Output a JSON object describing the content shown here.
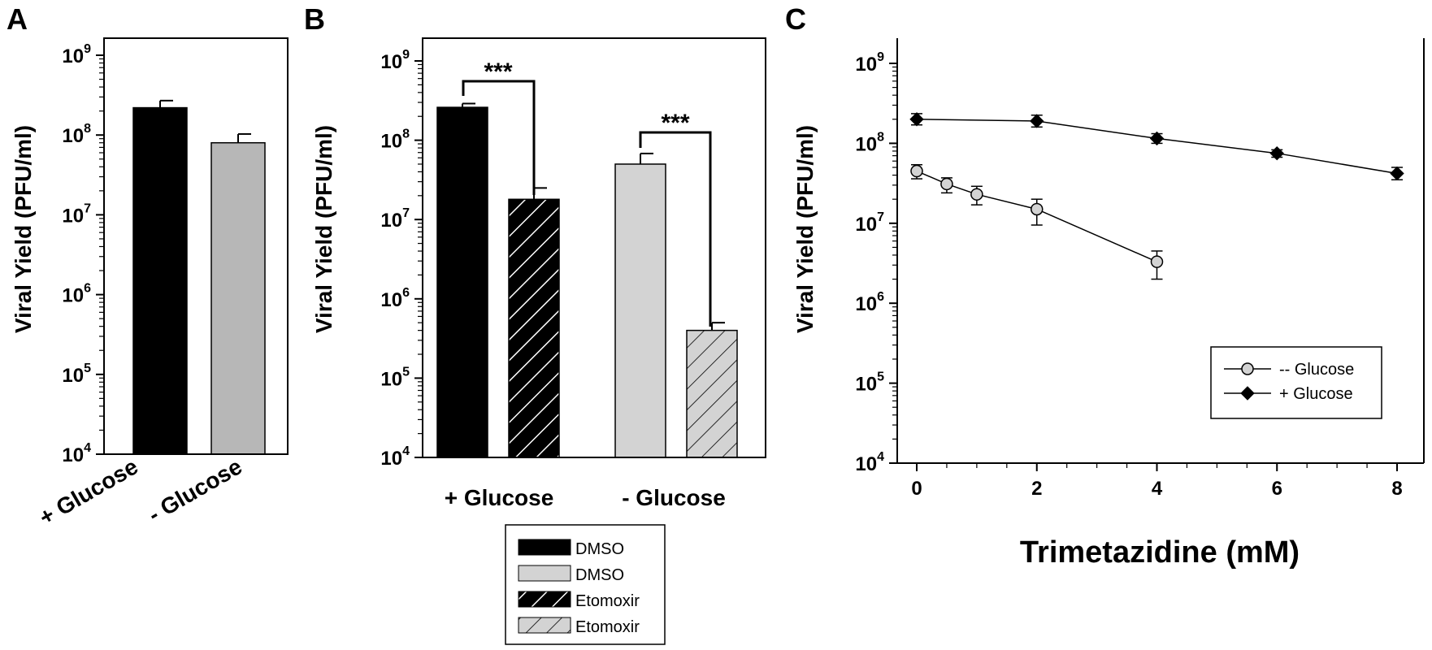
{
  "colors": {
    "black": "#000000",
    "light_gray": "#d3d3d3",
    "mid_gray": "#b7b7b7",
    "line": "#000000"
  },
  "chart_data": [
    {
      "type": "bar",
      "panel": "A",
      "ylabel": "Viral Yield (PFU/ml)",
      "yscale": "log",
      "ylim": [
        10000,
        1000000000
      ],
      "yticks": [
        {
          "base": "10",
          "exp": "4"
        },
        {
          "base": "10",
          "exp": "5"
        },
        {
          "base": "10",
          "exp": "6"
        },
        {
          "base": "10",
          "exp": "7"
        },
        {
          "base": "10",
          "exp": "8"
        },
        {
          "base": "10",
          "exp": "9"
        }
      ],
      "categories": [
        "+ Glucose",
        "- Glucose"
      ],
      "values": [
        220000000,
        80000000
      ],
      "errors_upper": [
        270000000,
        103000000
      ],
      "bar_colors": [
        "#000000",
        "#b7b7b7"
      ]
    },
    {
      "type": "bar",
      "panel": "B",
      "ylabel": "Viral Yield (PFU/ml)",
      "yscale": "log",
      "ylim": [
        10000,
        1000000000
      ],
      "yticks": [
        {
          "base": "10",
          "exp": "4"
        },
        {
          "base": "10",
          "exp": "5"
        },
        {
          "base": "10",
          "exp": "6"
        },
        {
          "base": "10",
          "exp": "7"
        },
        {
          "base": "10",
          "exp": "8"
        },
        {
          "base": "10",
          "exp": "9"
        }
      ],
      "categories": [
        "+ Glucose",
        "- Glucose"
      ],
      "bars": [
        {
          "group": "+ Glucose",
          "treatment": "DMSO",
          "value": 260000000,
          "error_upper": 290000000,
          "fill": "#000000",
          "hatch": false
        },
        {
          "group": "+ Glucose",
          "treatment": "Etomoxir",
          "value": 18000000,
          "error_upper": 25000000,
          "fill": "#000000",
          "hatch": true
        },
        {
          "group": "- Glucose",
          "treatment": "DMSO",
          "value": 50000000,
          "error_upper": 68000000,
          "fill": "#d3d3d3",
          "hatch": false
        },
        {
          "group": "- Glucose",
          "treatment": "Etomoxir",
          "value": 400000,
          "error_upper": 500000,
          "fill": "#d3d3d3",
          "hatch": true
        }
      ],
      "significance": [
        "***",
        "***"
      ],
      "legend": [
        {
          "label": "DMSO",
          "fill": "#000000",
          "hatch": false
        },
        {
          "label": "DMSO",
          "fill": "#d3d3d3",
          "hatch": false
        },
        {
          "label": "Etomoxir",
          "fill": "#000000",
          "hatch": true
        },
        {
          "label": "Etomoxir",
          "fill": "#d3d3d3",
          "hatch": true
        }
      ],
      "legend_position": "bottom-center"
    },
    {
      "type": "line",
      "panel": "C",
      "xlabel": "Trimetazidine (mM)",
      "ylabel": "Viral Yield (PFU/ml)",
      "yscale": "log",
      "ylim": [
        10000,
        1000000000
      ],
      "xlim": [
        0,
        8
      ],
      "xticks": [
        "0",
        "2",
        "4",
        "6",
        "8"
      ],
      "yticks": [
        {
          "base": "10",
          "exp": "4"
        },
        {
          "base": "10",
          "exp": "5"
        },
        {
          "base": "10",
          "exp": "6"
        },
        {
          "base": "10",
          "exp": "7"
        },
        {
          "base": "10",
          "exp": "8"
        },
        {
          "base": "10",
          "exp": "9"
        }
      ],
      "series": [
        {
          "name": "-- Glucose",
          "marker": "circle",
          "color": "#d3d3d3",
          "x": [
            0,
            0.5,
            1,
            2,
            4
          ],
          "y": [
            45000000,
            31000000,
            23000000,
            15000000,
            3300000
          ],
          "err_low": [
            36000000,
            24000000,
            17000000,
            9500000,
            2000000
          ],
          "err_high": [
            54000000,
            37000000,
            29000000,
            20000000,
            4500000
          ]
        },
        {
          "name": "+ Glucose",
          "marker": "diamond",
          "color": "#000000",
          "x": [
            0,
            2,
            4,
            6,
            8
          ],
          "y": [
            200000000,
            190000000,
            115000000,
            75000000,
            42000000
          ],
          "err_low": [
            170000000,
            160000000,
            100000000,
            67000000,
            35000000
          ],
          "err_high": [
            235000000,
            225000000,
            132000000,
            83000000,
            50000000
          ]
        }
      ],
      "legend_position": "lower-right"
    }
  ]
}
